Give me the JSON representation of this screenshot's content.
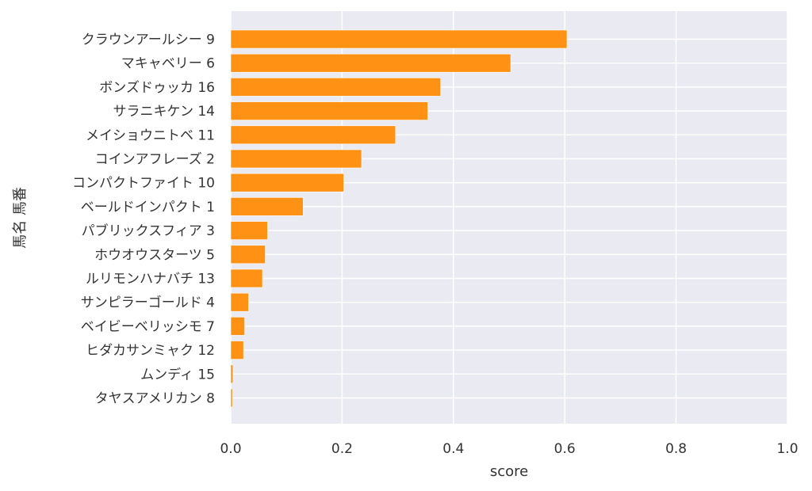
{
  "chart_data": {
    "type": "bar",
    "orientation": "horizontal",
    "categories": [
      "クラウンアールシー 9",
      "マキャベリー 6",
      "ボンズドゥッカ 16",
      "サラニキケン 14",
      "メイショウニトベ 11",
      "コインアフレーズ 2",
      "コンパクトファイト 10",
      "ベールドインパクト 1",
      "パブリックスフィア 3",
      "ホウオウスターツ 5",
      "ルリモンハナバチ 13",
      "サンピラーゴールド 4",
      "ベイビーベリッシモ 7",
      "ヒダカサンミャク 12",
      "ムンディ 15",
      "タヤスアメリカン 8"
    ],
    "values": [
      0.604,
      0.503,
      0.377,
      0.354,
      0.296,
      0.235,
      0.203,
      0.13,
      0.066,
      0.062,
      0.057,
      0.032,
      0.025,
      0.023,
      0.004,
      0.003
    ],
    "xlabel": "score",
    "ylabel": "馬名 馬番",
    "xlim": [
      0,
      1.0
    ],
    "xticks": [
      "0.0",
      "0.2",
      "0.4",
      "0.6",
      "0.8",
      "1.0"
    ],
    "bar_color": "#ff9214",
    "background_color": "#eaeaf2",
    "grid": true
  }
}
